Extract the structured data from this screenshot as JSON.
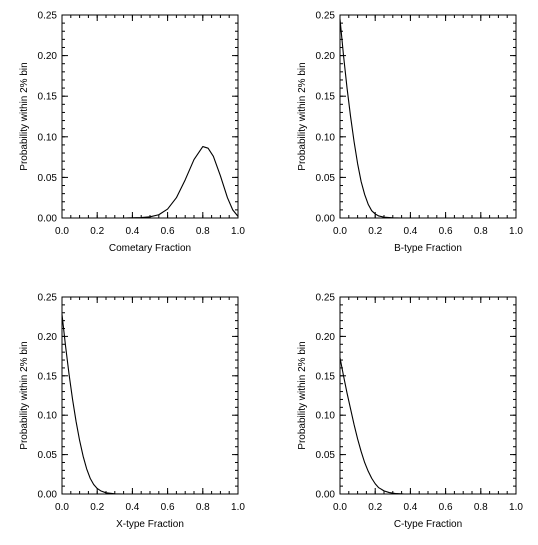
{
  "chart_data": [
    {
      "type": "line",
      "xlabel": "Cometary Fraction",
      "ylabel": "Probability within 2% bin",
      "xlim": [
        0.0,
        1.0
      ],
      "ylim": [
        0.0,
        0.25
      ],
      "x_ticks": [
        "0.0",
        "0.2",
        "0.4",
        "0.6",
        "0.8",
        "1.0"
      ],
      "y_ticks": [
        "0.00",
        "0.05",
        "0.10",
        "0.15",
        "0.20",
        "0.25"
      ],
      "grid": false,
      "series": [
        {
          "x": [
            0.0,
            0.35,
            0.45,
            0.5,
            0.55,
            0.6,
            0.65,
            0.7,
            0.75,
            0.8,
            0.83,
            0.86,
            0.9,
            0.94,
            0.97,
            1.0
          ],
          "y": [
            0.0,
            0.0,
            0.0005,
            0.0015,
            0.004,
            0.011,
            0.025,
            0.047,
            0.072,
            0.088,
            0.086,
            0.076,
            0.052,
            0.025,
            0.01,
            0.002
          ]
        }
      ]
    },
    {
      "type": "line",
      "xlabel": "B-type Fraction",
      "ylabel": "Probability within 2% bin",
      "xlim": [
        0.0,
        1.0
      ],
      "ylim": [
        0.0,
        0.25
      ],
      "x_ticks": [
        "0.0",
        "0.2",
        "0.4",
        "0.6",
        "0.8",
        "1.0"
      ],
      "y_ticks": [
        "0.00",
        "0.05",
        "0.10",
        "0.15",
        "0.20",
        "0.25"
      ],
      "grid": false,
      "series": [
        {
          "x": [
            0.0,
            0.02,
            0.04,
            0.06,
            0.08,
            0.1,
            0.12,
            0.14,
            0.16,
            0.18,
            0.2,
            0.22,
            0.25,
            0.3,
            0.35,
            1.0
          ],
          "y": [
            0.245,
            0.2,
            0.16,
            0.125,
            0.094,
            0.067,
            0.045,
            0.029,
            0.017,
            0.009,
            0.005,
            0.0025,
            0.001,
            0.0002,
            0.0,
            0.0
          ]
        }
      ]
    },
    {
      "type": "line",
      "xlabel": "X-type Fraction",
      "ylabel": "Probability within 2% bin",
      "xlim": [
        0.0,
        1.0
      ],
      "ylim": [
        0.0,
        0.25
      ],
      "x_ticks": [
        "0.0",
        "0.2",
        "0.4",
        "0.6",
        "0.8",
        "1.0"
      ],
      "y_ticks": [
        "0.00",
        "0.05",
        "0.10",
        "0.15",
        "0.20",
        "0.25"
      ],
      "grid": false,
      "series": [
        {
          "x": [
            0.0,
            0.02,
            0.04,
            0.06,
            0.08,
            0.1,
            0.12,
            0.14,
            0.16,
            0.18,
            0.2,
            0.22,
            0.25,
            0.3,
            0.35,
            1.0
          ],
          "y": [
            0.228,
            0.188,
            0.152,
            0.12,
            0.092,
            0.068,
            0.048,
            0.032,
            0.02,
            0.012,
            0.007,
            0.004,
            0.0015,
            0.0003,
            0.0,
            0.0
          ]
        }
      ]
    },
    {
      "type": "line",
      "xlabel": "C-type Fraction",
      "ylabel": "Probability within 2% bin",
      "xlim": [
        0.0,
        1.0
      ],
      "ylim": [
        0.0,
        0.25
      ],
      "x_ticks": [
        "0.0",
        "0.2",
        "0.4",
        "0.6",
        "0.8",
        "1.0"
      ],
      "y_ticks": [
        "0.00",
        "0.05",
        "0.10",
        "0.15",
        "0.20",
        "0.25"
      ],
      "grid": false,
      "series": [
        {
          "x": [
            0.0,
            0.02,
            0.04,
            0.06,
            0.08,
            0.1,
            0.12,
            0.14,
            0.16,
            0.18,
            0.2,
            0.22,
            0.25,
            0.28,
            0.32,
            0.36,
            0.4,
            1.0
          ],
          "y": [
            0.173,
            0.15,
            0.128,
            0.108,
            0.088,
            0.07,
            0.054,
            0.04,
            0.029,
            0.02,
            0.013,
            0.008,
            0.004,
            0.0018,
            0.0005,
            0.0001,
            0.0,
            0.0
          ]
        }
      ]
    }
  ]
}
